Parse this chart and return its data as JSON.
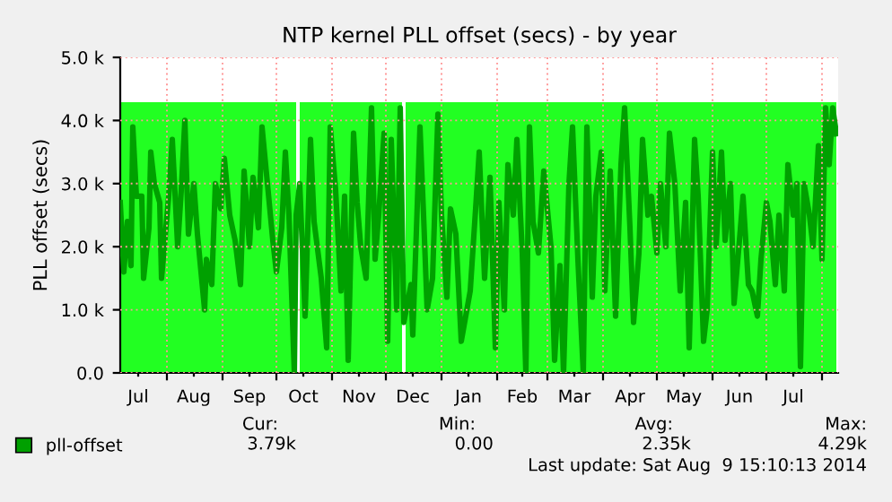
{
  "chart_data": {
    "type": "line",
    "title": "NTP kernel PLL offset (secs) - by year",
    "ylabel": "PLL offset (secs)",
    "xlim": [
      "2013-07-06",
      "2014-08-10"
    ],
    "ylim": [
      0,
      5000
    ],
    "xticks": [
      {
        "value": "2013-07-16",
        "label": "Jul"
      },
      {
        "value": "2013-08-16",
        "label": "Aug"
      },
      {
        "value": "2013-09-16",
        "label": "Sep"
      },
      {
        "value": "2013-10-16",
        "label": "Oct"
      },
      {
        "value": "2013-11-16",
        "label": "Nov"
      },
      {
        "value": "2013-12-16",
        "label": "Dec"
      },
      {
        "value": "2014-01-16",
        "label": "Jan"
      },
      {
        "value": "2014-02-15",
        "label": "Feb"
      },
      {
        "value": "2014-03-16",
        "label": "Mar"
      },
      {
        "value": "2014-04-16",
        "label": "Apr"
      },
      {
        "value": "2014-05-16",
        "label": "May"
      },
      {
        "value": "2014-06-16",
        "label": "Jun"
      },
      {
        "value": "2014-07-16",
        "label": "Jul"
      },
      {
        "value": "2013-08-01",
        "label": null
      },
      {
        "value": "2013-09-01",
        "label": null
      },
      {
        "value": "2013-10-01",
        "label": null
      },
      {
        "value": "2013-11-01",
        "label": null
      },
      {
        "value": "2013-12-01",
        "label": null
      },
      {
        "value": "2014-01-01",
        "label": null
      },
      {
        "value": "2014-02-01",
        "label": null
      },
      {
        "value": "2014-03-01",
        "label": null
      },
      {
        "value": "2014-04-01",
        "label": null
      },
      {
        "value": "2014-05-01",
        "label": null
      },
      {
        "value": "2014-06-01",
        "label": null
      },
      {
        "value": "2014-07-01",
        "label": null
      },
      {
        "value": "2014-08-01",
        "label": null
      }
    ],
    "yticks": [
      {
        "value": 0,
        "label": "0.0"
      },
      {
        "value": 1000,
        "label": "1.0 k"
      },
      {
        "value": 2000,
        "label": "2.0 k"
      },
      {
        "value": 3000,
        "label": "3.0 k"
      },
      {
        "value": 4000,
        "label": "4.0 k"
      },
      {
        "value": 5000,
        "label": "5.0 k"
      }
    ],
    "grid": true,
    "legend": "bottom left",
    "series": [
      {
        "type": "area",
        "color": "#22ff22",
        "x": [
          "2013-07-06",
          "2013-10-12",
          "2013-10-13",
          "2013-10-14",
          "2013-12-10",
          "2013-12-11",
          "2013-12-12",
          "2014-08-09"
        ],
        "values": [
          4290,
          4290,
          null,
          4290,
          4290,
          null,
          4290,
          4290
        ]
      },
      {
        "name": "pll-offset",
        "color": "#00a000",
        "x": [
          "2013-07-06",
          "2013-07-08",
          "2013-07-10",
          "2013-07-12",
          "2013-07-13",
          "2013-07-15",
          "2013-07-18",
          "2013-07-19",
          "2013-07-22",
          "2013-07-23",
          "2013-07-25",
          "2013-07-28",
          "2013-07-29",
          "2013-08-02",
          "2013-08-04",
          "2013-08-07",
          "2013-08-09",
          "2013-08-11",
          "2013-08-13",
          "2013-08-16",
          "2013-08-18",
          "2013-08-22",
          "2013-08-23",
          "2013-08-26",
          "2013-08-28",
          "2013-08-31",
          "2013-09-02",
          "2013-09-05",
          "2013-09-08",
          "2013-09-11",
          "2013-09-13",
          "2013-09-16",
          "2013-09-18",
          "2013-09-21",
          "2013-09-23",
          "2013-09-26",
          "2013-09-29",
          "2013-10-01",
          "2013-10-04",
          "2013-10-06",
          "2013-10-08",
          "2013-10-11",
          "2013-10-12",
          "2013-10-14",
          "2013-10-17",
          "2013-10-20",
          "2013-10-22",
          "2013-10-26",
          "2013-10-29",
          "2013-10-31",
          "2013-11-03",
          "2013-11-06",
          "2013-11-08",
          "2013-11-10",
          "2013-11-13",
          "2013-11-15",
          "2013-11-17",
          "2013-11-20",
          "2013-11-23",
          "2013-11-25",
          "2013-11-27",
          "2013-11-30",
          "2013-12-02",
          "2013-12-04",
          "2013-12-07",
          "2013-12-09",
          "2013-12-11",
          "2013-12-15",
          "2013-12-16",
          "2013-12-20",
          "2013-12-22",
          "2013-12-24",
          "2013-12-27",
          "2013-12-30",
          "2014-01-01",
          "2014-01-04",
          "2014-01-06",
          "2014-01-09",
          "2014-01-12",
          "2014-01-17",
          "2014-01-20",
          "2014-01-22",
          "2014-01-25",
          "2014-01-28",
          "2014-01-31",
          "2014-02-02",
          "2014-02-05",
          "2014-02-07",
          "2014-02-10",
          "2014-02-12",
          "2014-02-15",
          "2014-02-17",
          "2014-02-19",
          "2014-02-21",
          "2014-02-24",
          "2014-02-27",
          "2014-03-03",
          "2014-03-05",
          "2014-03-08",
          "2014-03-10",
          "2014-03-13",
          "2014-03-15",
          "2014-03-18",
          "2014-03-21",
          "2014-03-23",
          "2014-03-26",
          "2014-03-28",
          "2014-03-31",
          "2014-04-02",
          "2014-04-05",
          "2014-04-08",
          "2014-04-11",
          "2014-04-13",
          "2014-04-16",
          "2014-04-18",
          "2014-04-21",
          "2014-04-23",
          "2014-04-26",
          "2014-04-28",
          "2014-05-01",
          "2014-05-03",
          "2014-05-06",
          "2014-05-08",
          "2014-05-11",
          "2014-05-14",
          "2014-05-17",
          "2014-05-19",
          "2014-05-22",
          "2014-05-24",
          "2014-05-27",
          "2014-05-29",
          "2014-06-01",
          "2014-06-03",
          "2014-06-06",
          "2014-06-08",
          "2014-06-11",
          "2014-06-13",
          "2014-06-16",
          "2014-06-18",
          "2014-06-21",
          "2014-06-23",
          "2014-06-26",
          "2014-06-28",
          "2014-07-01",
          "2014-07-03",
          "2014-07-06",
          "2014-07-08",
          "2014-07-11",
          "2014-07-13",
          "2014-07-16",
          "2014-07-18",
          "2014-07-20",
          "2014-07-22",
          "2014-07-25",
          "2014-07-27",
          "2014-07-30",
          "2014-08-01",
          "2014-08-03",
          "2014-08-05",
          "2014-08-07",
          "2014-08-09"
        ],
        "values": [
          2700,
          1600,
          2400,
          1700,
          3900,
          2800,
          2800,
          1500,
          2300,
          3500,
          3000,
          2700,
          1500,
          2800,
          3700,
          2000,
          2900,
          4000,
          2200,
          3000,
          2200,
          1000,
          1800,
          1400,
          3000,
          2600,
          3400,
          2500,
          2100,
          1400,
          3200,
          2000,
          3100,
          2300,
          3900,
          3000,
          2100,
          1600,
          2300,
          3500,
          2500,
          0,
          2500,
          3000,
          900,
          3700,
          2400,
          1500,
          400,
          3900,
          2900,
          1300,
          2800,
          200,
          3800,
          2700,
          2000,
          1500,
          4200,
          1800,
          2500,
          3800,
          500,
          3700,
          1000,
          4200,
          800,
          1400,
          600,
          3900,
          2500,
          1000,
          1500,
          4100,
          2500,
          1200,
          2600,
          2200,
          500,
          1300,
          2600,
          3500,
          1500,
          3100,
          400,
          2700,
          1000,
          3300,
          2500,
          3700,
          1900,
          0,
          3900,
          2400,
          1900,
          3200,
          2000,
          200,
          1700,
          0,
          3000,
          3900,
          1800,
          0,
          3900,
          1200,
          2800,
          3500,
          1300,
          3200,
          900,
          3300,
          4200,
          2300,
          800,
          1900,
          3700,
          2500,
          2800,
          1900,
          3000,
          2000,
          3800,
          3000,
          1300,
          2700,
          400,
          3700,
          2800,
          500,
          1000,
          3500,
          2000,
          3500,
          2100,
          3000,
          1100,
          2100,
          2800,
          1400,
          1300,
          900,
          1800,
          2700,
          2400,
          1400,
          2500,
          1300,
          3300,
          2500,
          3000,
          100,
          3000,
          2500,
          2000,
          3600,
          1800,
          4200,
          3300,
          4200,
          3790
        ]
      }
    ],
    "annotations": [
      "Cur:",
      "Min:",
      "Avg:",
      "Max:",
      "3.79k",
      "0.00",
      "2.35k",
      "4.29k",
      "Last update: Sat Aug  9 15:10:13 2014"
    ]
  }
}
